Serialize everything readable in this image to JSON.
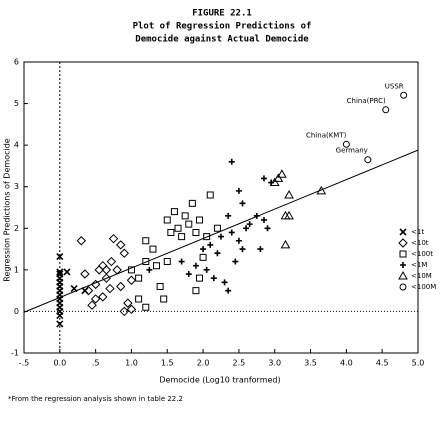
{
  "chart_data": {
    "type": "scatter",
    "title": [
      "FIGURE 22.1",
      "Plot of Regression Predictions of",
      "Democide against Actual Democide"
    ],
    "x_label": "Democide (Log10 tranformed)",
    "y_label": "Regression Predictions of Democide",
    "footnote": "*From the regression analysis shown in table 22.2",
    "xlim": [
      -0.5,
      5.0
    ],
    "xticks": [
      {
        "value": -0.5,
        "label": "-.5"
      },
      {
        "value": 0,
        "label": "0.0"
      },
      {
        "value": 0.5,
        "label": ".5"
      },
      {
        "value": 1,
        "label": "1.0"
      },
      {
        "value": 1.5,
        "label": "1.5"
      },
      {
        "value": 2,
        "label": "2.0"
      },
      {
        "value": 2.5,
        "label": "2.5"
      },
      {
        "value": 3,
        "label": "3.0"
      },
      {
        "value": 3.5,
        "label": "3.5"
      },
      {
        "value": 4,
        "label": "4.0"
      },
      {
        "value": 4.5,
        "label": "4.5"
      },
      {
        "value": 5,
        "label": "5.0"
      }
    ],
    "ylim": [
      -1,
      6
    ],
    "yticks": [
      -1,
      0,
      1,
      2,
      3,
      4,
      5,
      6
    ],
    "legend": "right",
    "reference_lines": {
      "x": 0,
      "y": 0
    },
    "fit_line": {
      "x": [
        -0.5,
        5.0
      ],
      "y": [
        -0.02,
        3.88
      ]
    },
    "series": [
      {
        "name": "<1t",
        "marker": "x",
        "color": "#000000",
        "x": [
          0,
          0,
          0,
          0,
          0,
          0,
          0,
          0,
          0,
          0,
          0,
          0,
          0,
          0,
          0.1,
          0.2,
          0.35
        ],
        "y": [
          1.32,
          0.95,
          0.9,
          0.8,
          0.7,
          0.6,
          0.5,
          0.4,
          0.3,
          0.2,
          0.1,
          0,
          -0.1,
          -0.3,
          0.95,
          0.55,
          0.5
        ]
      },
      {
        "name": "<10t",
        "marker": "diamond",
        "color": "#000000",
        "x": [
          0.3,
          0.35,
          0.4,
          0.5,
          0.55,
          0.6,
          0.65,
          0.7,
          0.72,
          0.8,
          0.85,
          0.9,
          0.95,
          1.0,
          0.75,
          0.6,
          0.45,
          0.9,
          0.5,
          0.85,
          1.0,
          0.65
        ],
        "y": [
          1.7,
          0.9,
          0.5,
          0.65,
          1.0,
          1.1,
          0.8,
          0.55,
          1.2,
          1.0,
          0.6,
          1.4,
          0.2,
          0.05,
          1.75,
          0.35,
          0.15,
          0.0,
          0.3,
          1.6,
          0.75,
          1.0
        ]
      },
      {
        "name": "<100t",
        "marker": "square",
        "color": "#000000",
        "x": [
          1.0,
          1.1,
          1.2,
          1.2,
          1.3,
          1.35,
          1.4,
          1.45,
          1.5,
          1.55,
          1.6,
          1.65,
          1.7,
          1.75,
          1.8,
          1.85,
          1.9,
          1.95,
          2.0,
          2.05,
          2.1,
          2.2,
          1.2,
          1.1,
          1.95,
          1.9,
          1.5
        ],
        "y": [
          1.0,
          0.8,
          1.2,
          1.7,
          1.5,
          1.1,
          0.6,
          0.3,
          2.2,
          1.9,
          2.4,
          2.0,
          1.8,
          2.3,
          2.1,
          2.6,
          1.9,
          2.2,
          1.3,
          1.8,
          2.8,
          2.0,
          0.1,
          0.3,
          0.8,
          0.5,
          1.2
        ]
      },
      {
        "name": "<1M",
        "marker": "plus",
        "color": "#000000",
        "x": [
          1.25,
          1.7,
          1.8,
          1.9,
          2.0,
          2.05,
          2.1,
          2.15,
          2.2,
          2.3,
          2.35,
          2.4,
          2.45,
          2.5,
          2.55,
          2.6,
          2.4,
          2.5,
          2.65,
          2.75,
          2.8,
          2.85,
          2.9,
          2.85,
          2.35,
          2.25,
          2.55,
          2.95
        ],
        "y": [
          1.0,
          1.2,
          0.9,
          1.1,
          1.5,
          1.0,
          1.6,
          0.8,
          1.4,
          0.7,
          2.3,
          1.9,
          1.2,
          1.7,
          1.5,
          2.0,
          3.6,
          2.9,
          2.1,
          2.3,
          1.5,
          2.2,
          2.0,
          3.2,
          0.5,
          1.8,
          2.6,
          3.1
        ]
      },
      {
        "name": "<10M",
        "marker": "triangle",
        "color": "#000000",
        "x": [
          3.0,
          3.1,
          3.15,
          3.2,
          3.2,
          3.05,
          3.15,
          3.65
        ],
        "y": [
          3.1,
          3.3,
          2.3,
          2.3,
          2.8,
          3.2,
          1.6,
          2.9
        ]
      },
      {
        "name": "<100M",
        "marker": "circle",
        "color": "#000000",
        "x": [
          4.3,
          4.0,
          4.55,
          4.8
        ],
        "y": [
          3.65,
          4.02,
          4.85,
          5.2
        ],
        "point_labels": [
          "Germany",
          "China(KMT)",
          "China(PRC)",
          "USSR"
        ]
      }
    ]
  }
}
